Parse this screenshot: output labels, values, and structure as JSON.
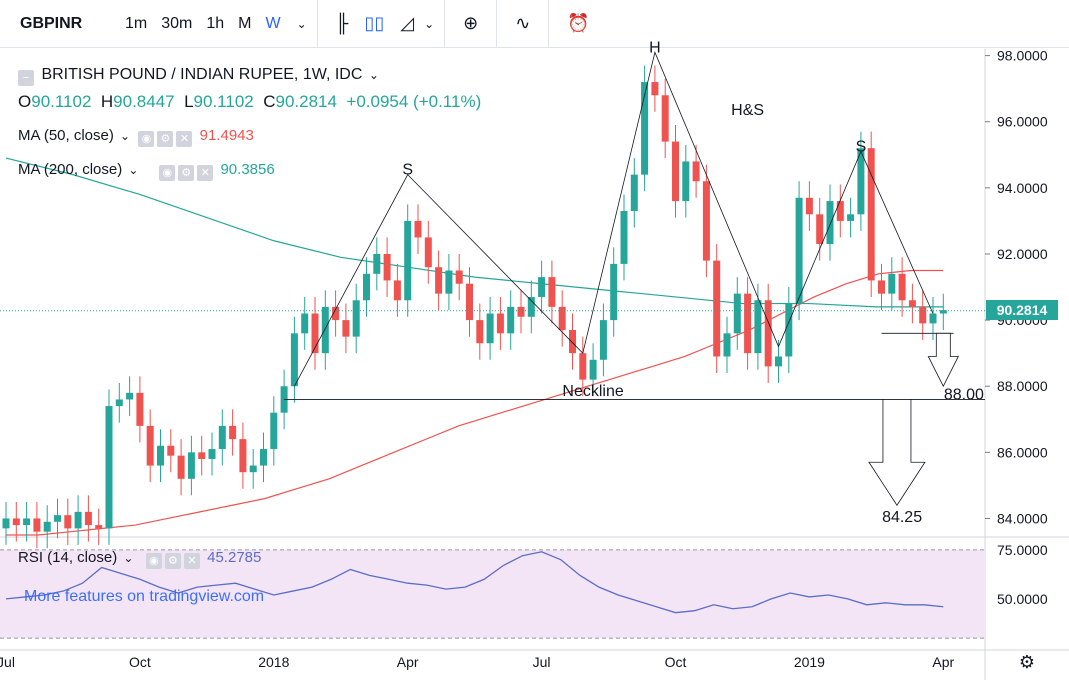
{
  "toolbar": {
    "symbol": "GBPINR",
    "timeframes": [
      "1m",
      "30m",
      "1h",
      "M",
      "W"
    ],
    "active_timeframe": "W",
    "icons": [
      "bar-style-icon",
      "candles-icon",
      "area-icon",
      "add-compare-icon",
      "indicators-icon",
      "alert-icon"
    ]
  },
  "legend": {
    "title": "BRITISH POUND / INDIAN RUPEE, 1W, IDC",
    "o_label": "O",
    "o": "90.1102",
    "h_label": "H",
    "h": "90.8447",
    "l_label": "L",
    "l": "90.1102",
    "c_label": "C",
    "c": "90.2814",
    "change": "+0.0954 (+0.11%)",
    "ma50_label": "MA (50, close)",
    "ma50_value": "91.4943",
    "ma200_label": "MA (200, close)",
    "ma200_value": "90.3856",
    "rsi_label": "RSI (14, close)",
    "rsi_value": "45.2785"
  },
  "last_price": "90.2814",
  "watermark": "More features on tradingview.com",
  "colors": {
    "up": "#26a69a",
    "down": "#ef5350",
    "ma50": "#ef5350",
    "ma200": "#26a69a",
    "rsi": "#5b6dc8",
    "rsi_band": "#f3e5f5"
  },
  "chart_data": {
    "type": "candlestick",
    "title": "BRITISH POUND / INDIAN RUPEE, 1W, IDC",
    "price_axis": [
      "98.0000",
      "96.0000",
      "94.0000",
      "92.0000",
      "90.0000",
      "88.0000",
      "86.0000",
      "84.0000"
    ],
    "price_range": [
      83.5,
      98.2
    ],
    "time_axis": [
      "Jul",
      "Oct",
      "2018",
      "Apr",
      "Jul",
      "Oct",
      "2019",
      "Apr"
    ],
    "time_axis_index": [
      0,
      13,
      26,
      39,
      52,
      65,
      78,
      91
    ],
    "candles_close": [
      84.0,
      83.8,
      84.0,
      83.6,
      83.9,
      84.1,
      83.7,
      84.2,
      83.8,
      83.7,
      87.4,
      87.6,
      87.8,
      86.8,
      85.6,
      86.2,
      85.9,
      85.2,
      86.0,
      85.8,
      86.1,
      86.8,
      86.4,
      85.4,
      85.6,
      86.1,
      87.2,
      88.0,
      89.6,
      90.2,
      89.0,
      90.4,
      90.0,
      89.5,
      90.6,
      91.4,
      92.0,
      91.2,
      90.6,
      93.0,
      92.5,
      91.6,
      90.8,
      91.5,
      91.1,
      90.0,
      89.3,
      90.2,
      89.6,
      90.4,
      90.1,
      90.7,
      91.3,
      90.4,
      89.7,
      89.0,
      88.2,
      88.8,
      90.0,
      91.7,
      93.3,
      94.4,
      97.2,
      96.8,
      95.4,
      93.6,
      94.8,
      94.2,
      91.8,
      88.9,
      89.6,
      90.8,
      89.0,
      90.6,
      88.6,
      88.9,
      90.5,
      93.7,
      93.2,
      92.3,
      93.6,
      93.0,
      93.2,
      95.2,
      91.2,
      90.8,
      91.4,
      90.6,
      90.4,
      89.9,
      90.2,
      90.3
    ],
    "ma50": [
      83.5,
      83.5,
      83.6,
      83.7,
      83.8,
      84.0,
      84.2,
      84.4,
      84.6,
      84.9,
      85.2,
      85.6,
      86.0,
      86.4,
      86.8,
      87.1,
      87.4,
      87.7,
      88.0,
      88.3,
      88.6,
      88.9,
      89.3,
      89.7,
      90.2,
      90.7,
      91.1,
      91.4,
      91.5,
      91.5
    ],
    "ma200": [
      94.9,
      94.4,
      93.8,
      93.1,
      92.4,
      91.9,
      91.6,
      91.3,
      91.1,
      90.9,
      90.7,
      90.5,
      90.5,
      90.4,
      90.4
    ],
    "rsi_axis": [
      "75.0000",
      "50.0000"
    ],
    "rsi_range": [
      25,
      80
    ],
    "rsi": [
      50,
      51,
      52,
      54,
      58,
      66,
      63,
      60,
      56,
      53,
      56,
      57,
      58,
      55,
      52,
      54,
      56,
      60,
      65,
      62,
      60,
      58,
      57,
      55,
      56,
      60,
      67,
      72,
      74,
      70,
      62,
      56,
      52,
      49,
      46,
      43,
      44,
      47,
      45,
      46,
      50,
      53,
      51,
      52,
      50,
      47,
      48,
      47,
      47,
      46
    ],
    "annotations": [
      {
        "text": "S",
        "x": 39,
        "y": 94.4
      },
      {
        "text": "H",
        "x": 63,
        "y": 98.1
      },
      {
        "text": "H&S",
        "x": 72,
        "y": 96.2
      },
      {
        "text": "S",
        "x": 83,
        "y": 95.1
      },
      {
        "text": "Neckline",
        "x": 57,
        "y": 87.7
      },
      {
        "text": "88.00",
        "x": 93,
        "y": 87.6
      },
      {
        "text": "84.25",
        "x": 87,
        "y": 83.9
      }
    ],
    "neckline": 87.6,
    "grid": false,
    "legend_position": "top-left"
  }
}
